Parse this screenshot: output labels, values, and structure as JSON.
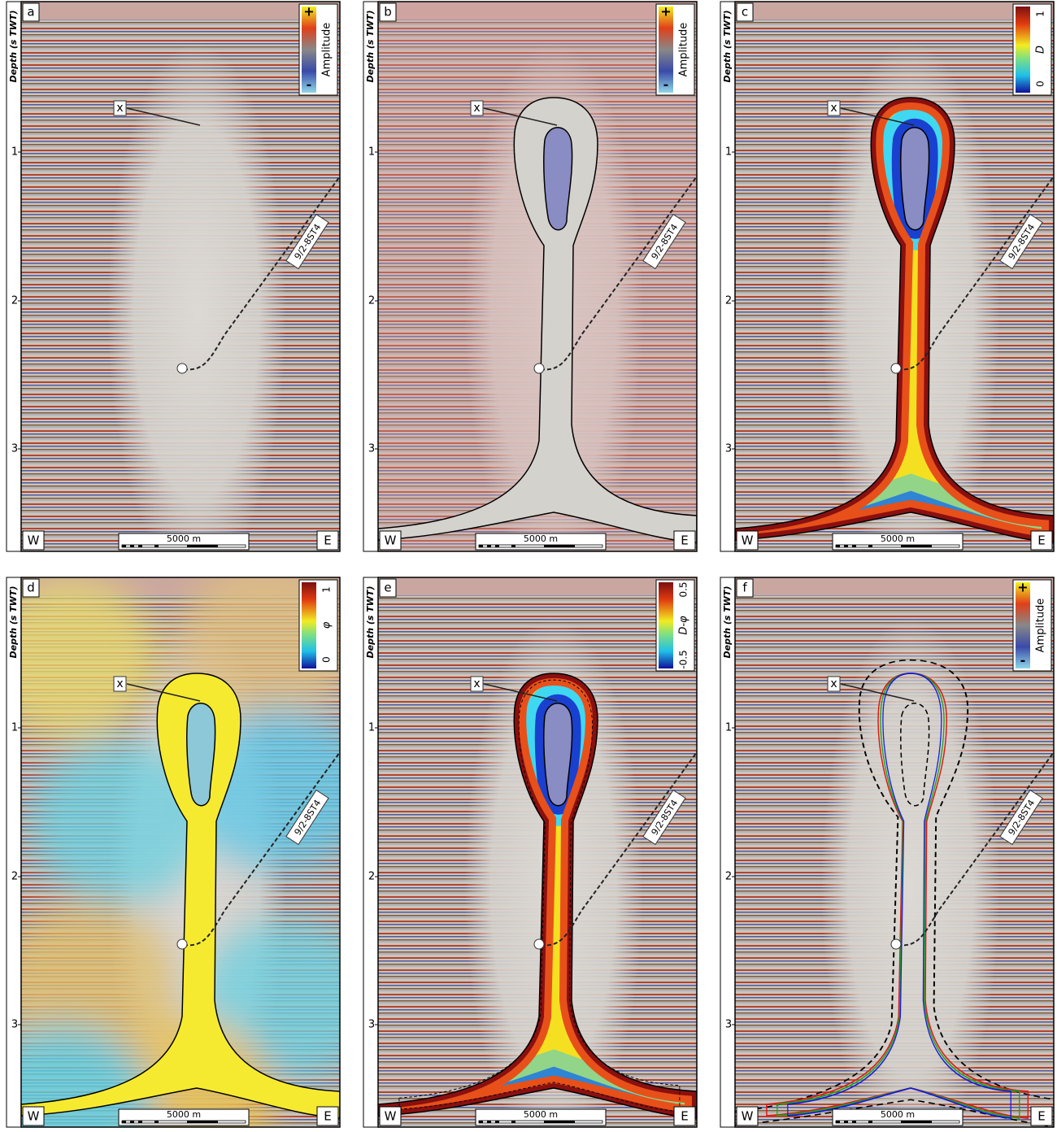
{
  "axis": {
    "label": "Depth (s TWT)",
    "ticks": [
      "1",
      "2",
      "3"
    ]
  },
  "labels": {
    "marker": "x",
    "well": "9/2-8ST4",
    "west": "W",
    "east": "E",
    "scale": "5000 m"
  },
  "panels": [
    {
      "letter": "a",
      "legend": {
        "max": "+",
        "min": "-",
        "title": "Amplitude"
      }
    },
    {
      "letter": "b",
      "legend": {
        "max": "+",
        "min": "-",
        "title": "Amplitude"
      }
    },
    {
      "letter": "c",
      "legend": {
        "max": "1",
        "min": "0",
        "title": "D"
      }
    },
    {
      "letter": "d",
      "legend": {
        "max": "1",
        "min": "0",
        "title": "φ"
      }
    },
    {
      "letter": "e",
      "legend": {
        "max": "0.5",
        "min": "-0.5",
        "title": "D-φ"
      }
    },
    {
      "letter": "f",
      "legend": {
        "max": "+",
        "min": "-",
        "title": "Amplitude"
      }
    }
  ]
}
